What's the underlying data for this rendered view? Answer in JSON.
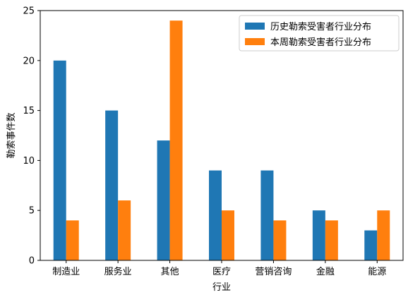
{
  "chart_data": {
    "type": "bar",
    "title": "",
    "xlabel": "行业",
    "ylabel": "勒索事件数",
    "categories": [
      "制造业",
      "服务业",
      "其他",
      "医疗",
      "营销咨询",
      "金融",
      "能源"
    ],
    "series": [
      {
        "name": "历史勒索受害者行业分布",
        "color": "#1f77b4",
        "values": [
          20,
          15,
          12,
          9,
          9,
          5,
          3
        ]
      },
      {
        "name": "本周勒索受害者行业分布",
        "color": "#ff7f0e",
        "values": [
          4,
          6,
          24,
          5,
          4,
          4,
          5
        ]
      }
    ],
    "ylim": [
      0,
      25
    ],
    "yticks": [
      0,
      5,
      10,
      15,
      20,
      25
    ],
    "legend_position": "upper-right",
    "grid": false
  }
}
